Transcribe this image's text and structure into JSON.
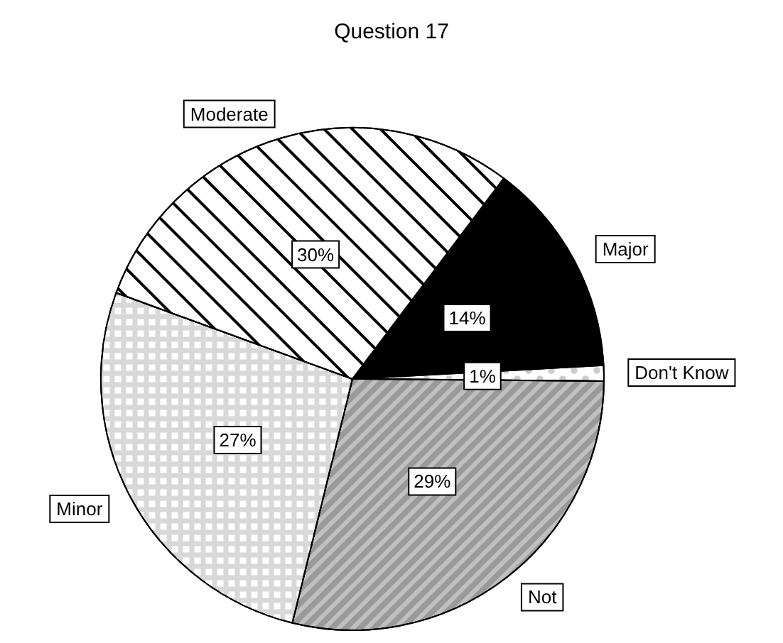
{
  "chart_data": {
    "type": "pie",
    "title": "Question 17",
    "categories": [
      "Major",
      "Don't Know",
      "Not",
      "Minor",
      "Moderate"
    ],
    "values": [
      14,
      1,
      29,
      27,
      30
    ],
    "value_labels": [
      "14%",
      "1%",
      "29%",
      "27%",
      "30%"
    ],
    "colors": [
      "#000000",
      "#ffffff",
      "#c0c0c0",
      "#d8d8d8",
      "#ffffff"
    ],
    "legend": false
  }
}
